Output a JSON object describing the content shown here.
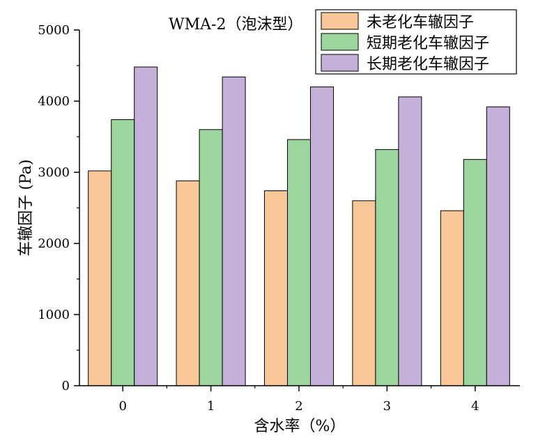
{
  "chart_data": {
    "type": "bar",
    "title": "WMA-2（泡沫型）",
    "xlabel": "含水率（%）",
    "ylabel": "车辙因子 (Pa)",
    "categories": [
      "0",
      "1",
      "2",
      "3",
      "4"
    ],
    "series": [
      {
        "name": "未老化车辙因子",
        "values": [
          3020,
          2880,
          2740,
          2600,
          2460
        ],
        "color": "#f9c797"
      },
      {
        "name": "短期老化车辙因子",
        "values": [
          3740,
          3600,
          3460,
          3320,
          3180
        ],
        "color": "#9dd59e"
      },
      {
        "name": "长期老化车辙因子",
        "values": [
          4480,
          4340,
          4200,
          4060,
          3920
        ],
        "color": "#c4b0d8"
      }
    ],
    "ylim": [
      0,
      5000
    ],
    "yticks": [
      "0",
      "1000",
      "2000",
      "3000",
      "4000",
      "5000"
    ],
    "legend_position": "top-right",
    "grid": false
  }
}
